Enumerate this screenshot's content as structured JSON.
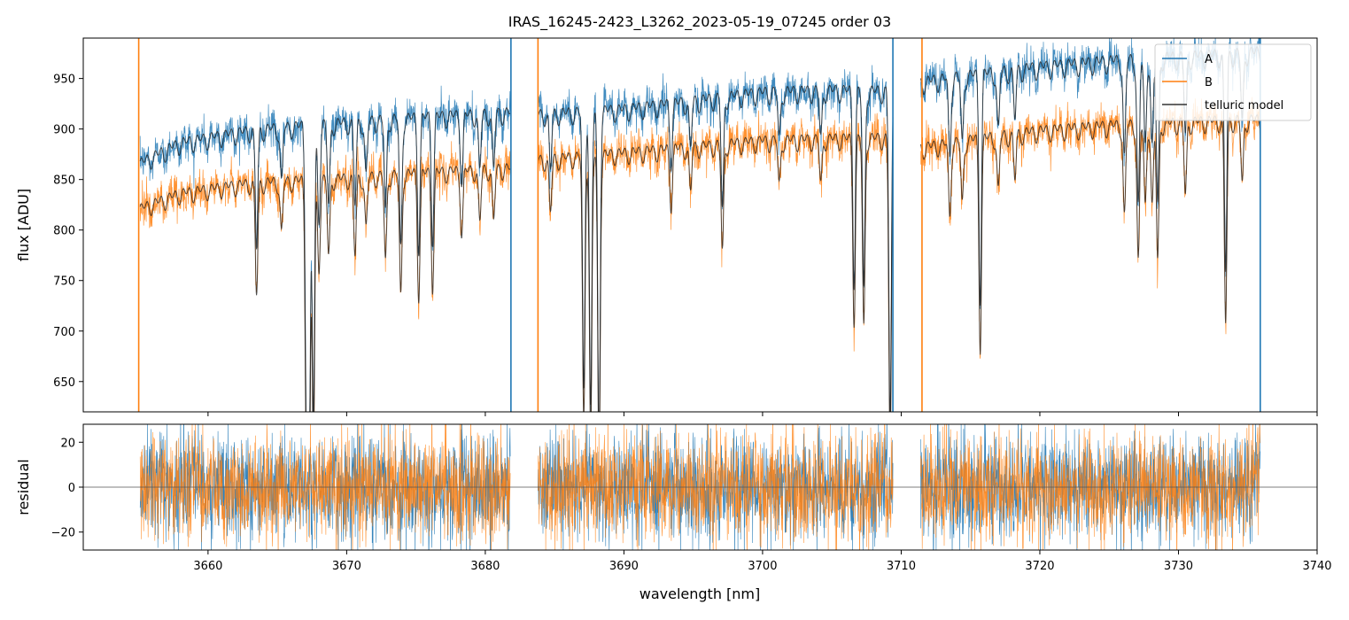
{
  "chart_data": [
    {
      "type": "line",
      "panel": "main",
      "title": "IRAS_16245-2423_L3262_2023-05-19_07245  order 03",
      "xlabel": "",
      "ylabel": "flux [ADU]",
      "xlim": [
        3651,
        3740
      ],
      "ylim": [
        620,
        990
      ],
      "yticks": [
        650,
        700,
        750,
        800,
        850,
        900,
        950
      ],
      "xticks": [
        3660,
        3670,
        3680,
        3690,
        3700,
        3710,
        3720,
        3730,
        3740
      ],
      "legend": {
        "placement": "top-right",
        "entries": [
          "A",
          "B",
          "telluric model"
        ]
      },
      "segments": [
        [
          3655.1,
          3681.8
        ],
        [
          3683.8,
          3709.4
        ],
        [
          3711.4,
          3735.9
        ]
      ],
      "spike_positions": [
        3655.0,
        3681.85,
        3683.8,
        3709.4,
        3711.5,
        3735.9
      ],
      "absorption_lines": [
        {
          "x": 3663.5,
          "depth": 0.13
        },
        {
          "x": 3665.3,
          "depth": 0.06
        },
        {
          "x": 3667.1,
          "depth": 0.32
        },
        {
          "x": 3667.3,
          "depth": 0.35
        },
        {
          "x": 3667.6,
          "depth": 0.32
        },
        {
          "x": 3668.0,
          "depth": 0.1
        },
        {
          "x": 3668.7,
          "depth": 0.09
        },
        {
          "x": 3670.6,
          "depth": 0.09
        },
        {
          "x": 3671.4,
          "depth": 0.06
        },
        {
          "x": 3672.8,
          "depth": 0.1
        },
        {
          "x": 3673.9,
          "depth": 0.14
        },
        {
          "x": 3675.2,
          "depth": 0.14
        },
        {
          "x": 3676.2,
          "depth": 0.13
        },
        {
          "x": 3678.3,
          "depth": 0.07
        },
        {
          "x": 3679.6,
          "depth": 0.06
        },
        {
          "x": 3680.6,
          "depth": 0.06
        },
        {
          "x": 3684.7,
          "depth": 0.06
        },
        {
          "x": 3687.1,
          "depth": 0.3
        },
        {
          "x": 3687.6,
          "depth": 0.32
        },
        {
          "x": 3688.2,
          "depth": 0.35
        },
        {
          "x": 3693.4,
          "depth": 0.06
        },
        {
          "x": 3694.8,
          "depth": 0.05
        },
        {
          "x": 3697.1,
          "depth": 0.12
        },
        {
          "x": 3701.2,
          "depth": 0.05
        },
        {
          "x": 3704.2,
          "depth": 0.05
        },
        {
          "x": 3706.6,
          "depth": 0.2
        },
        {
          "x": 3707.3,
          "depth": 0.21
        },
        {
          "x": 3709.2,
          "depth": 0.35
        },
        {
          "x": 3713.5,
          "depth": 0.08
        },
        {
          "x": 3714.4,
          "depth": 0.07
        },
        {
          "x": 3715.7,
          "depth": 0.23
        },
        {
          "x": 3717.0,
          "depth": 0.06
        },
        {
          "x": 3718.2,
          "depth": 0.05
        },
        {
          "x": 3726.1,
          "depth": 0.1
        },
        {
          "x": 3727.1,
          "depth": 0.15
        },
        {
          "x": 3727.6,
          "depth": 0.09
        },
        {
          "x": 3728.1,
          "depth": 0.09
        },
        {
          "x": 3728.5,
          "depth": 0.15
        },
        {
          "x": 3730.5,
          "depth": 0.08
        },
        {
          "x": 3733.4,
          "depth": 0.22
        },
        {
          "x": 3734.6,
          "depth": 0.07
        }
      ],
      "series": [
        {
          "name": "A",
          "color": "#1f77b4",
          "continuum": [
            [
              3655.1,
              865
            ],
            [
              3658,
              885
            ],
            [
              3663,
              897
            ],
            [
              3667,
              902
            ],
            [
              3670,
              905
            ],
            [
              3675,
              910
            ],
            [
              3681.8,
              915
            ],
            [
              3683.8,
              913
            ],
            [
              3690,
              918
            ],
            [
              3696,
              928
            ],
            [
              3700,
              935
            ],
            [
              3705,
              937
            ],
            [
              3709.4,
              936
            ],
            [
              3711.4,
              945
            ],
            [
              3715,
              952
            ],
            [
              3720,
              960
            ],
            [
              3725,
              966
            ],
            [
              3730,
              970
            ],
            [
              3733,
              972
            ],
            [
              3735.9,
              975
            ]
          ]
        },
        {
          "name": "B",
          "color": "#ff7f0e",
          "continuum": [
            [
              3655.1,
              820
            ],
            [
              3658,
              835
            ],
            [
              3663,
              845
            ],
            [
              3667,
              848
            ],
            [
              3670,
              850
            ],
            [
              3675,
              855
            ],
            [
              3681.8,
              860
            ],
            [
              3683.8,
              868
            ],
            [
              3690,
              875
            ],
            [
              3696,
              882
            ],
            [
              3700,
              887
            ],
            [
              3705,
              889
            ],
            [
              3709.4,
              890
            ],
            [
              3711.4,
              880
            ],
            [
              3715,
              888
            ],
            [
              3720,
              897
            ],
            [
              3725,
              902
            ],
            [
              3730,
              905
            ],
            [
              3733,
              907
            ],
            [
              3735.9,
              908
            ]
          ]
        },
        {
          "name": "telluric model",
          "color": "#333333"
        }
      ]
    },
    {
      "type": "line",
      "panel": "residual",
      "xlabel": "wavelength [nm]",
      "ylabel": "residual",
      "xlim": [
        3651,
        3740
      ],
      "ylim": [
        -28,
        28
      ],
      "yticks": [
        -20,
        0,
        20
      ],
      "xticks": [
        3660,
        3670,
        3680,
        3690,
        3700,
        3710,
        3720,
        3730,
        3740
      ],
      "zero_line": 0,
      "segments": [
        [
          3655.1,
          3681.8
        ],
        [
          3683.8,
          3709.4
        ],
        [
          3711.4,
          3735.9
        ]
      ],
      "noise_amplitude": 12,
      "series": [
        {
          "name": "A",
          "color": "#1f77b4"
        },
        {
          "name": "B",
          "color": "#ff7f0e"
        }
      ]
    }
  ]
}
